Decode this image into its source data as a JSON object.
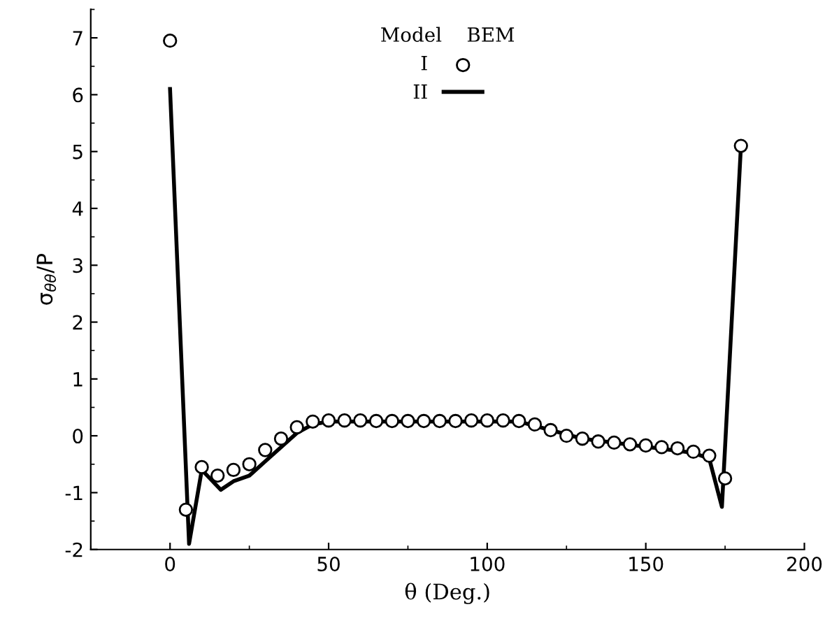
{
  "chart_data": {
    "type": "line",
    "xlabel": "θ (Deg.)",
    "ylabel": "σ$_{θθ}$/P",
    "legend_title": "Model    BEM",
    "legend": "top",
    "grid": false,
    "xlim": [
      -25,
      200
    ],
    "xticks": [
      0,
      50,
      100,
      150,
      200
    ],
    "ylim": [
      -2,
      7.5
    ],
    "yticks": [
      -2,
      -1,
      0,
      1,
      2,
      3,
      4,
      5,
      6,
      7
    ],
    "series": [
      {
        "name": "I",
        "type": "scatter",
        "marker": "circle",
        "color": "#000000",
        "x": [
          0,
          5,
          10,
          15,
          20,
          25,
          30,
          35,
          40,
          45,
          50,
          55,
          60,
          65,
          70,
          75,
          80,
          85,
          90,
          95,
          100,
          105,
          110,
          115,
          120,
          125,
          130,
          135,
          140,
          145,
          150,
          155,
          160,
          165,
          170,
          175,
          180
        ],
        "values": [
          6.95,
          -1.3,
          -0.55,
          -0.7,
          -0.6,
          -0.5,
          -0.25,
          -0.05,
          0.15,
          0.25,
          0.27,
          0.27,
          0.27,
          0.26,
          0.26,
          0.26,
          0.26,
          0.26,
          0.26,
          0.27,
          0.27,
          0.27,
          0.26,
          0.2,
          0.1,
          0.0,
          -0.05,
          -0.1,
          -0.12,
          -0.15,
          -0.17,
          -0.2,
          -0.22,
          -0.28,
          -0.35,
          -0.75,
          5.1
        ]
      },
      {
        "name": "II",
        "line_style": "solid",
        "color": "#000000",
        "x": [
          0,
          6,
          10,
          16,
          20,
          25,
          30,
          40,
          45,
          50,
          110,
          130,
          165,
          170,
          174,
          180
        ],
        "values": [
          6.1,
          -1.9,
          -0.6,
          -0.95,
          -0.8,
          -0.7,
          -0.45,
          0.05,
          0.2,
          0.25,
          0.25,
          -0.05,
          -0.3,
          -0.4,
          -1.25,
          5.1
        ]
      }
    ]
  }
}
